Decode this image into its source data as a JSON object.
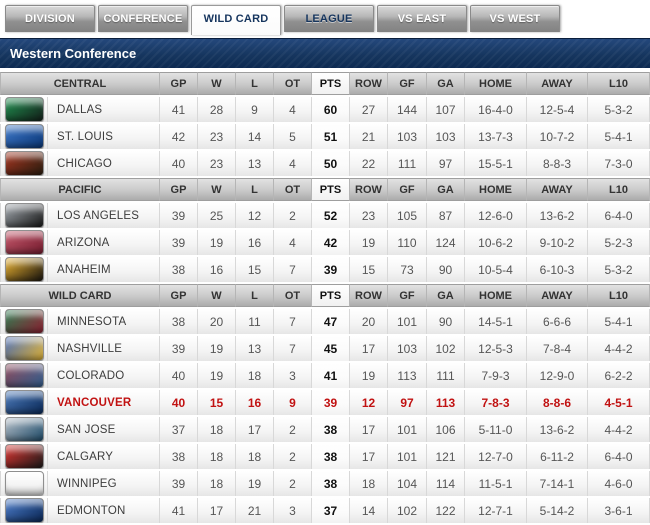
{
  "tabs": [
    {
      "label": "DIVISION",
      "active": false,
      "text": "light"
    },
    {
      "label": "CONFERENCE",
      "active": false,
      "text": "light"
    },
    {
      "label": "WILD CARD",
      "active": true,
      "text": "navy"
    },
    {
      "label": "LEAGUE",
      "active": false,
      "text": "navy"
    },
    {
      "label": "VS EAST",
      "active": false,
      "text": "light"
    },
    {
      "label": "VS WEST",
      "active": false,
      "text": "light"
    }
  ],
  "page_title": "Western Conference",
  "colors": {
    "accent_navy": "#16365f",
    "highlight_red": "#c11212",
    "tab_gray": "#909090"
  },
  "table": {
    "columns": [
      "GP",
      "W",
      "L",
      "OT",
      "PTS",
      "ROW",
      "GF",
      "GA",
      "HOME",
      "AWAY",
      "L10"
    ],
    "pts_column_index": 4,
    "sections": [
      {
        "name": "CENTRAL",
        "teams": [
          {
            "name": "DALLAS",
            "logo_colors": [
              "#1f8a4d",
              "#15231c"
            ],
            "highlight": false,
            "stats": [
              "41",
              "28",
              "9",
              "4",
              "60",
              "27",
              "144",
              "107",
              "16-4-0",
              "12-5-4",
              "5-3-2"
            ]
          },
          {
            "name": "ST. LOUIS",
            "logo_colors": [
              "#3b74c4",
              "#0d3a7c"
            ],
            "highlight": false,
            "stats": [
              "42",
              "23",
              "14",
              "5",
              "51",
              "21",
              "103",
              "103",
              "13-7-3",
              "10-7-2",
              "5-4-1"
            ]
          },
          {
            "name": "CHICAGO",
            "logo_colors": [
              "#a03420",
              "#2d1e10"
            ],
            "highlight": false,
            "stats": [
              "40",
              "23",
              "13",
              "4",
              "50",
              "22",
              "111",
              "97",
              "15-5-1",
              "8-8-3",
              "7-3-0"
            ]
          }
        ]
      },
      {
        "name": "PACIFIC",
        "teams": [
          {
            "name": "LOS ANGELES",
            "logo_colors": [
              "#9aa0a6",
              "#1b1b1b"
            ],
            "highlight": false,
            "stats": [
              "39",
              "25",
              "12",
              "2",
              "52",
              "23",
              "105",
              "87",
              "12-6-0",
              "13-6-2",
              "6-4-0"
            ]
          },
          {
            "name": "ARIZONA",
            "logo_colors": [
              "#c05568",
              "#7a1f32"
            ],
            "highlight": false,
            "stats": [
              "39",
              "19",
              "16",
              "4",
              "42",
              "19",
              "110",
              "124",
              "10-6-2",
              "9-10-2",
              "5-2-3"
            ]
          },
          {
            "name": "ANAHEIM",
            "logo_colors": [
              "#e0aa2e",
              "#1c1710"
            ],
            "highlight": false,
            "stats": [
              "38",
              "16",
              "15",
              "7",
              "39",
              "15",
              "73",
              "90",
              "10-5-4",
              "6-10-3",
              "5-3-2"
            ]
          }
        ]
      },
      {
        "name": "WILD CARD",
        "teams": [
          {
            "name": "MINNESOTA",
            "logo_colors": [
              "#2f7a50",
              "#8f2334"
            ],
            "highlight": false,
            "stats": [
              "38",
              "20",
              "11",
              "7",
              "47",
              "20",
              "101",
              "90",
              "14-5-1",
              "6-6-6",
              "5-4-1"
            ]
          },
          {
            "name": "NASHVILLE",
            "logo_colors": [
              "#4a6cb3",
              "#e3b63a"
            ],
            "highlight": false,
            "stats": [
              "39",
              "19",
              "13",
              "7",
              "45",
              "17",
              "103",
              "102",
              "12-5-3",
              "7-8-4",
              "4-4-2"
            ]
          },
          {
            "name": "COLORADO",
            "logo_colors": [
              "#8a4a5c",
              "#35608f"
            ],
            "highlight": false,
            "stats": [
              "40",
              "19",
              "18",
              "3",
              "41",
              "19",
              "113",
              "111",
              "7-9-3",
              "12-9-0",
              "6-2-2"
            ]
          },
          {
            "name": "VANCOUVER",
            "logo_colors": [
              "#4a77b5",
              "#0c2c5c"
            ],
            "highlight": true,
            "stats": [
              "40",
              "15",
              "16",
              "9",
              "39",
              "12",
              "97",
              "113",
              "7-8-3",
              "8-8-6",
              "4-5-1"
            ]
          },
          {
            "name": "SAN JOSE",
            "logo_colors": [
              "#aeb8c2",
              "#23506e"
            ],
            "highlight": false,
            "stats": [
              "37",
              "18",
              "17",
              "2",
              "38",
              "17",
              "101",
              "106",
              "5-11-0",
              "13-6-2",
              "4-4-2"
            ]
          },
          {
            "name": "CALGARY",
            "logo_colors": [
              "#d4322e",
              "#201c1c"
            ],
            "highlight": false,
            "stats": [
              "38",
              "18",
              "18",
              "2",
              "38",
              "17",
              "101",
              "121",
              "12-7-0",
              "6-11-2",
              "6-4-0"
            ]
          },
          {
            "name": "WINNIPEG",
            "logo_colors": [
              "#3b5web",
              "#0b1e42"
            ],
            "highlight": false,
            "stats": [
              "39",
              "18",
              "19",
              "2",
              "38",
              "18",
              "104",
              "114",
              "11-5-1",
              "7-14-1",
              "4-6-0"
            ]
          },
          {
            "name": "EDMONTON",
            "logo_colors": [
              "#4a79c4",
              "#0c2a5a"
            ],
            "highlight": false,
            "stats": [
              "41",
              "17",
              "21",
              "3",
              "37",
              "14",
              "102",
              "122",
              "12-7-1",
              "5-14-2",
              "3-6-1"
            ]
          }
        ]
      }
    ]
  }
}
